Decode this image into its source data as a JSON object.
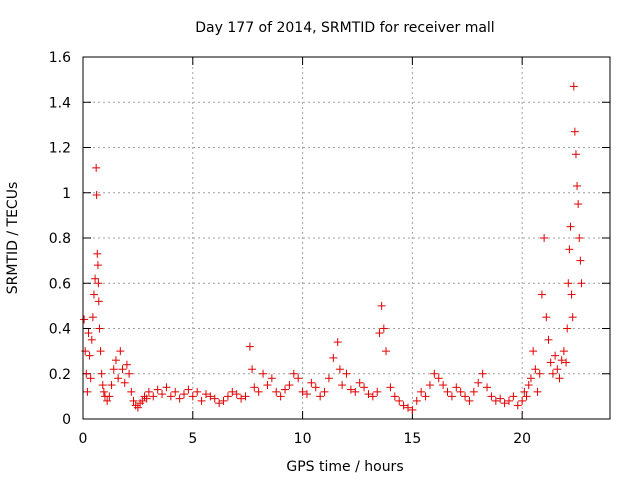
{
  "chart_data": {
    "type": "scatter",
    "title": "Day 177 of 2014, SRMTID for receiver mall",
    "xlabel": "GPS time / hours",
    "ylabel": "SRMTID / TECUs",
    "xlim": [
      0,
      24
    ],
    "ylim": [
      0,
      1.6
    ],
    "xticks": [
      0,
      5,
      10,
      15,
      20
    ],
    "xtick_labels": [
      "0",
      "5",
      "10",
      "15",
      "20"
    ],
    "yticks": [
      0,
      0.2,
      0.4,
      0.6,
      0.8,
      1,
      1.2,
      1.4,
      1.6
    ],
    "ytick_labels": [
      "0",
      "0.2",
      "0.4",
      "0.6",
      "0.8",
      "1",
      "1.2",
      "1.4",
      "1.6"
    ],
    "grid": true,
    "marker": "+",
    "color": "#e00000",
    "series": [
      {
        "name": "SRMTID",
        "x": [
          0.05,
          0.1,
          0.15,
          0.2,
          0.25,
          0.3,
          0.35,
          0.4,
          0.45,
          0.5,
          0.55,
          0.6,
          0.62,
          0.65,
          0.68,
          0.7,
          0.72,
          0.75,
          0.8,
          0.85,
          0.9,
          0.95,
          1.0,
          1.1,
          1.2,
          1.3,
          1.4,
          1.5,
          1.6,
          1.7,
          1.8,
          1.9,
          2.0,
          2.1,
          2.2,
          2.3,
          2.4,
          2.5,
          2.6,
          2.7,
          2.8,
          2.9,
          3.0,
          3.2,
          3.4,
          3.6,
          3.8,
          4.0,
          4.2,
          4.4,
          4.6,
          4.8,
          5.0,
          5.2,
          5.4,
          5.6,
          5.8,
          6.0,
          6.2,
          6.4,
          6.6,
          6.8,
          7.0,
          7.2,
          7.4,
          7.6,
          7.7,
          7.8,
          8.0,
          8.2,
          8.4,
          8.6,
          8.8,
          9.0,
          9.2,
          9.4,
          9.6,
          9.8,
          10.0,
          10.2,
          10.4,
          10.6,
          10.8,
          11.0,
          11.2,
          11.4,
          11.6,
          11.7,
          11.8,
          12.0,
          12.2,
          12.4,
          12.6,
          12.8,
          13.0,
          13.2,
          13.4,
          13.5,
          13.6,
          13.7,
          13.8,
          14.0,
          14.2,
          14.4,
          14.6,
          14.8,
          15.0,
          15.2,
          15.4,
          15.6,
          15.8,
          16.0,
          16.2,
          16.4,
          16.6,
          16.8,
          17.0,
          17.2,
          17.4,
          17.6,
          17.8,
          18.0,
          18.2,
          18.4,
          18.6,
          18.8,
          19.0,
          19.2,
          19.4,
          19.6,
          19.8,
          20.0,
          20.1,
          20.2,
          20.3,
          20.4,
          20.5,
          20.6,
          20.7,
          20.8,
          20.9,
          21.0,
          21.1,
          21.2,
          21.3,
          21.4,
          21.5,
          21.6,
          21.7,
          21.8,
          21.9,
          22.0,
          22.05,
          22.1,
          22.15,
          22.2,
          22.25,
          22.3,
          22.35,
          22.4,
          22.45,
          22.5,
          22.55,
          22.6,
          22.65,
          22.7
        ],
        "y": [
          0.44,
          0.3,
          0.2,
          0.12,
          0.38,
          0.28,
          0.18,
          0.35,
          0.45,
          0.55,
          0.62,
          1.11,
          0.99,
          0.73,
          0.68,
          0.6,
          0.52,
          0.4,
          0.3,
          0.2,
          0.15,
          0.12,
          0.1,
          0.08,
          0.1,
          0.15,
          0.22,
          0.26,
          0.18,
          0.3,
          0.22,
          0.16,
          0.24,
          0.2,
          0.12,
          0.08,
          0.06,
          0.05,
          0.07,
          0.08,
          0.1,
          0.09,
          0.12,
          0.1,
          0.13,
          0.11,
          0.14,
          0.1,
          0.12,
          0.09,
          0.11,
          0.13,
          0.1,
          0.12,
          0.08,
          0.11,
          0.1,
          0.09,
          0.07,
          0.08,
          0.1,
          0.12,
          0.11,
          0.09,
          0.1,
          0.32,
          0.22,
          0.14,
          0.12,
          0.2,
          0.15,
          0.18,
          0.12,
          0.1,
          0.13,
          0.15,
          0.2,
          0.18,
          0.12,
          0.11,
          0.16,
          0.14,
          0.1,
          0.12,
          0.18,
          0.27,
          0.34,
          0.22,
          0.15,
          0.2,
          0.13,
          0.12,
          0.16,
          0.14,
          0.11,
          0.1,
          0.12,
          0.38,
          0.5,
          0.4,
          0.3,
          0.14,
          0.1,
          0.08,
          0.06,
          0.05,
          0.04,
          0.08,
          0.12,
          0.1,
          0.15,
          0.2,
          0.18,
          0.15,
          0.12,
          0.1,
          0.14,
          0.12,
          0.1,
          0.08,
          0.12,
          0.16,
          0.2,
          0.14,
          0.1,
          0.08,
          0.09,
          0.07,
          0.08,
          0.1,
          0.06,
          0.08,
          0.12,
          0.1,
          0.15,
          0.18,
          0.3,
          0.22,
          0.12,
          0.2,
          0.55,
          0.8,
          0.45,
          0.35,
          0.25,
          0.2,
          0.28,
          0.22,
          0.18,
          0.26,
          0.3,
          0.25,
          0.4,
          0.6,
          0.75,
          0.85,
          0.55,
          0.45,
          1.47,
          1.27,
          1.17,
          1.03,
          0.95,
          0.8,
          0.7,
          0.6
        ]
      }
    ]
  }
}
